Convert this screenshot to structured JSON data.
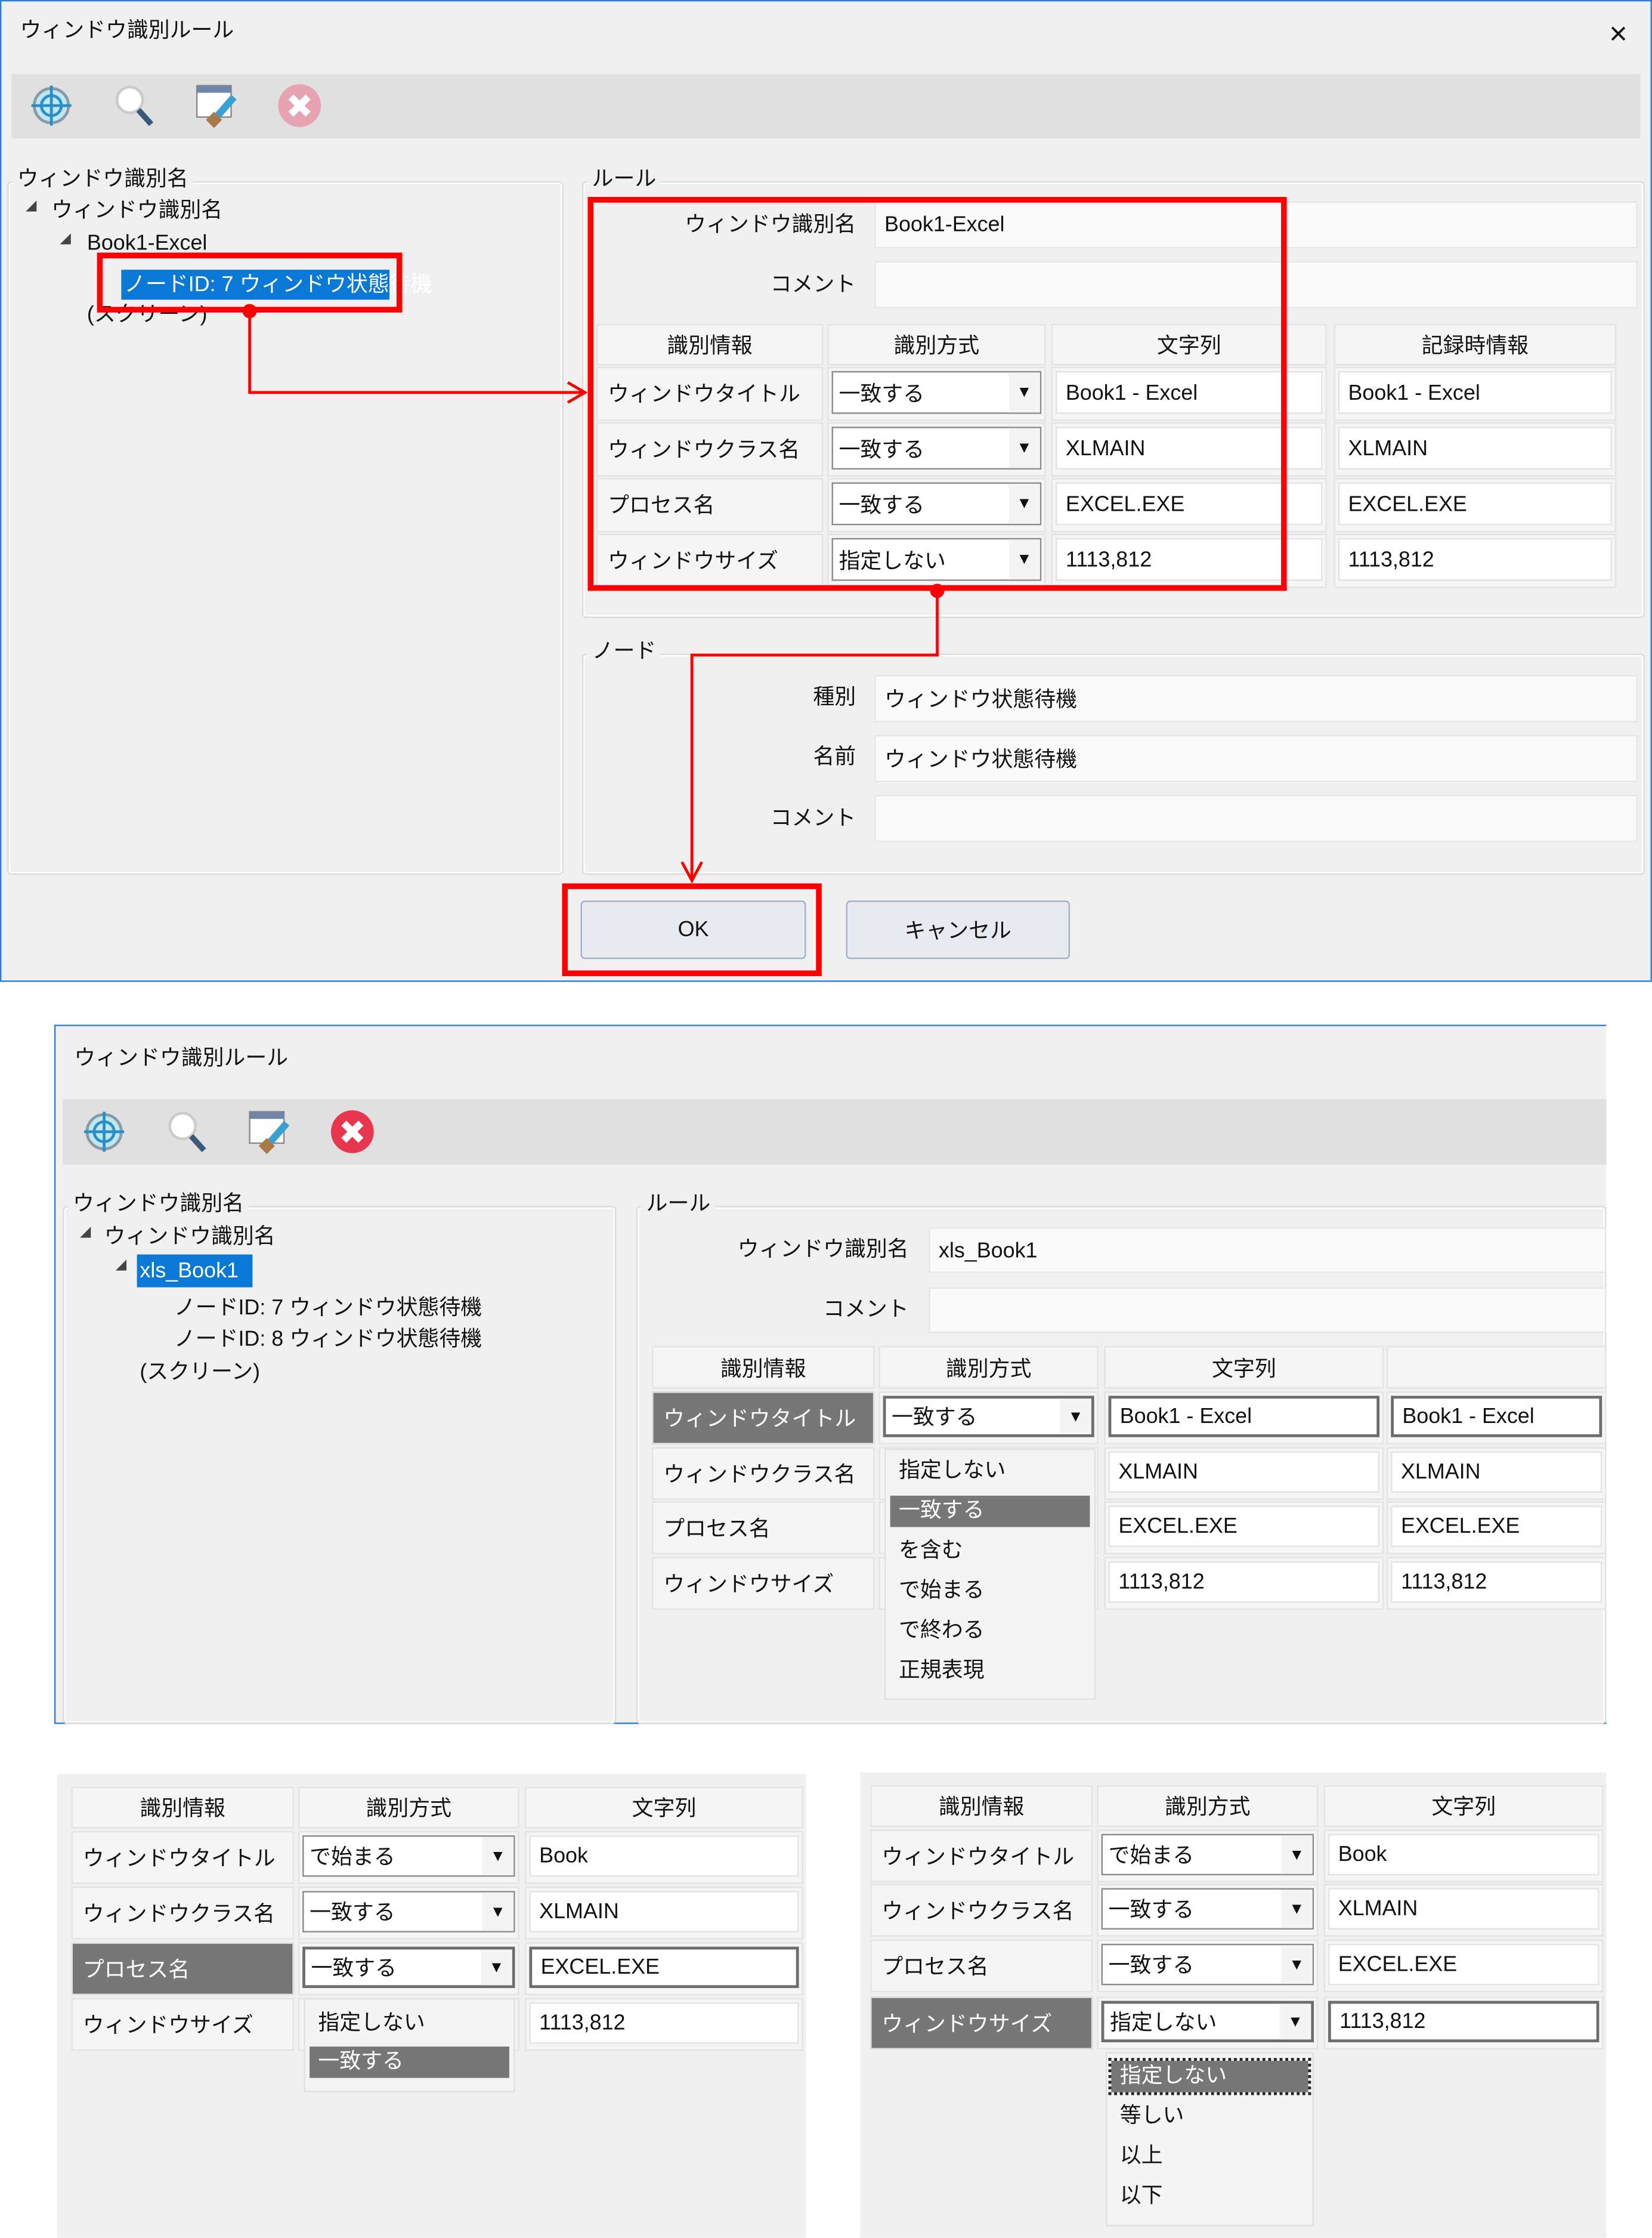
{
  "colors": {
    "accent": "#0a78d7",
    "annotation": "#ff0000",
    "selected_row": "#777777",
    "close_active": "#e8364f",
    "close_disabled": "#e8a3b3"
  },
  "toolbar_icons": [
    "crosshair-target-icon",
    "magnifier-search-icon",
    "window-brush-icon",
    "close-circle-icon"
  ],
  "panel1": {
    "title": "ウィンドウ識別ルール",
    "close": "×",
    "tree_group": "ウィンドウ識別名",
    "tree": [
      "ウィンドウ識別名",
      "Book1-Excel",
      "ノードID: 7 ウィンドウ状態待機",
      "(スクリーン)"
    ],
    "rule_group": "ルール",
    "name_label": "ウィンドウ識別名",
    "name_value": "Book1-Excel",
    "comment_label": "コメント",
    "comment_value": "",
    "headers": [
      "識別情報",
      "識別方式",
      "文字列",
      "記録時情報"
    ],
    "rows": [
      {
        "label": "ウィンドウタイトル",
        "method": "一致する",
        "string": "Book1 - Excel",
        "recorded": "Book1 - Excel"
      },
      {
        "label": "ウィンドウクラス名",
        "method": "一致する",
        "string": "XLMAIN",
        "recorded": "XLMAIN"
      },
      {
        "label": "プロセス名",
        "method": "一致する",
        "string": "EXCEL.EXE",
        "recorded": "EXCEL.EXE"
      },
      {
        "label": "ウィンドウサイズ",
        "method": "指定しない",
        "string": "1113,812",
        "recorded": "1113,812"
      }
    ],
    "node_group": "ノード",
    "node_type_label": "種別",
    "node_type_value": "ウィンドウ状態待機",
    "node_name_label": "名前",
    "node_name_value": "ウィンドウ状態待機",
    "node_comment_label": "コメント",
    "node_comment_value": "",
    "ok": "OK",
    "cancel": "キャンセル"
  },
  "panel2": {
    "title": "ウィンドウ識別ルール",
    "tree_group": "ウィンドウ識別名",
    "tree": [
      "ウィンドウ識別名",
      "xls_Book1",
      "ノードID: 7 ウィンドウ状態待機",
      "ノードID: 8 ウィンドウ状態待機",
      "(スクリーン)"
    ],
    "rule_group": "ルール",
    "name_label": "ウィンドウ識別名",
    "name_value": "xls_Book1",
    "comment_label": "コメント",
    "comment_value": "",
    "headers": [
      "識別情報",
      "識別方式",
      "文字列",
      ""
    ],
    "rows": [
      {
        "label": "ウィンドウタイトル",
        "method": "一致する",
        "string": "Book1 - Excel",
        "recorded": "Book1 - Excel"
      },
      {
        "label": "ウィンドウクラス名",
        "method": "",
        "string": "XLMAIN",
        "recorded": "XLMAIN"
      },
      {
        "label": "プロセス名",
        "method": "",
        "string": "EXCEL.EXE",
        "recorded": "EXCEL.EXE"
      },
      {
        "label": "ウィンドウサイズ",
        "method": "",
        "string": "1113,812",
        "recorded": "1113,812"
      }
    ],
    "dropdown": [
      "指定しない",
      "一致する",
      "を含む",
      "で始まる",
      "で終わる",
      "正規表現"
    ],
    "dropdown_selected": "一致する"
  },
  "panel3": {
    "headers": [
      "識別情報",
      "識別方式",
      "文字列"
    ],
    "rows": [
      {
        "label": "ウィンドウタイトル",
        "method": "で始まる",
        "string": "Book"
      },
      {
        "label": "ウィンドウクラス名",
        "method": "一致する",
        "string": "XLMAIN"
      },
      {
        "label": "プロセス名",
        "method": "一致する",
        "string": "EXCEL.EXE"
      },
      {
        "label": "ウィンドウサイズ",
        "method": "",
        "string": "1113,812"
      }
    ],
    "dropdown": [
      "指定しない",
      "一致する"
    ],
    "dropdown_selected": "一致する"
  },
  "panel4": {
    "headers": [
      "識別情報",
      "識別方式",
      "文字列"
    ],
    "rows": [
      {
        "label": "ウィンドウタイトル",
        "method": "で始まる",
        "string": "Book"
      },
      {
        "label": "ウィンドウクラス名",
        "method": "一致する",
        "string": "XLMAIN"
      },
      {
        "label": "プロセス名",
        "method": "一致する",
        "string": "EXCEL.EXE"
      },
      {
        "label": "ウィンドウサイズ",
        "method": "指定しない",
        "string": "1113,812"
      }
    ],
    "dropdown": [
      "指定しない",
      "等しい",
      "以上",
      "以下"
    ],
    "dropdown_selected": "指定しない"
  }
}
